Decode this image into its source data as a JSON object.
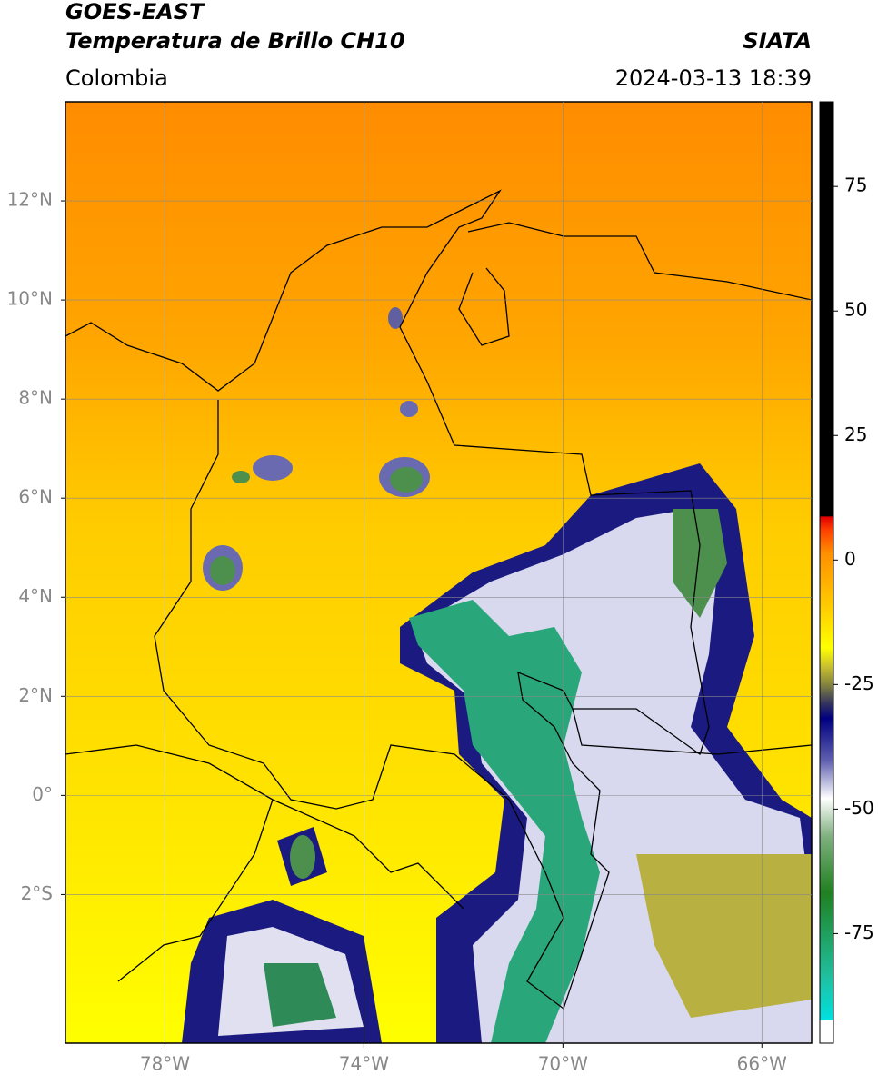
{
  "header": {
    "title": "GOES-EAST",
    "subtitle": "Temperatura de Brillo CH10",
    "source": "SIATA",
    "region": "Colombia",
    "datetime": "2024-03-13 18:39"
  },
  "map": {
    "xlim": [
      -80,
      -65
    ],
    "ylim": [
      -5,
      14
    ],
    "xticks": [
      {
        "value": -78,
        "label": "78°W"
      },
      {
        "value": -74,
        "label": "74°W"
      },
      {
        "value": -70,
        "label": "70°W"
      },
      {
        "value": -66,
        "label": "66°W"
      }
    ],
    "yticks": [
      {
        "value": 12,
        "label": "12°N"
      },
      {
        "value": 10,
        "label": "10°N"
      },
      {
        "value": 8,
        "label": "8°N"
      },
      {
        "value": 6,
        "label": "6°N"
      },
      {
        "value": 4,
        "label": "4°N"
      },
      {
        "value": 2,
        "label": "2°N"
      },
      {
        "value": 0,
        "label": "0°"
      },
      {
        "value": -2,
        "label": "2°S"
      }
    ],
    "grid": true
  },
  "colorbar": {
    "lim": [
      -97,
      92
    ],
    "ticks": [
      75,
      50,
      25,
      0,
      -25,
      -50,
      -75
    ]
  }
}
